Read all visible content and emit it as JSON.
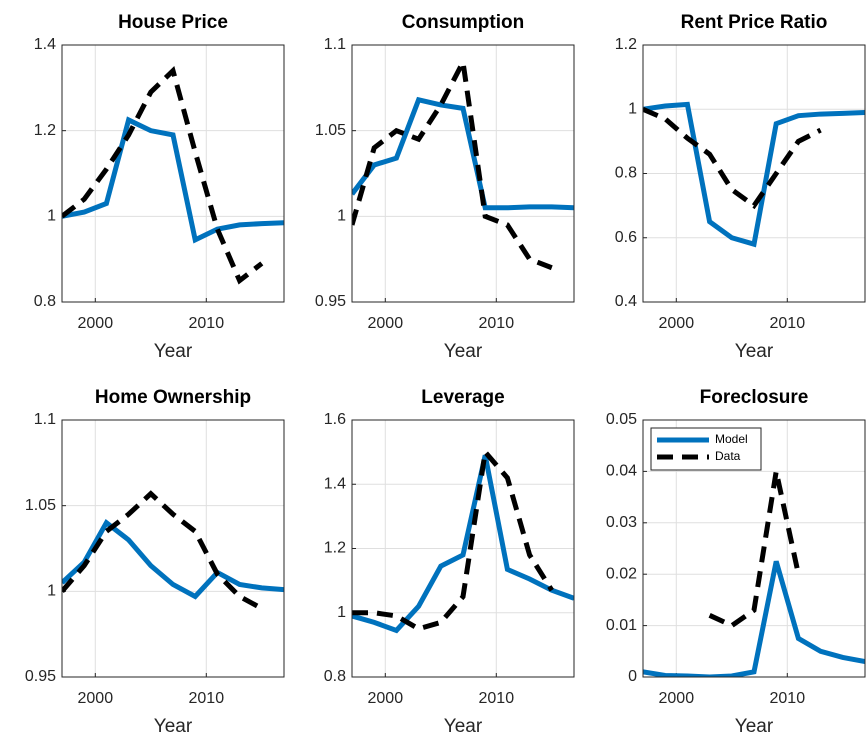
{
  "chart_data": [
    {
      "type": "line",
      "title": "House Price",
      "x_label": "Year",
      "x": [
        1997,
        1999,
        2001,
        2003,
        2005,
        2007,
        2009,
        2011,
        2013,
        2015,
        2017
      ],
      "series": [
        {
          "color": "#0072bd",
          "style": "solid",
          "values": [
            1.0,
            1.01,
            1.03,
            1.225,
            1.2,
            1.19,
            0.945,
            0.97,
            0.98,
            0.983,
            0.985
          ]
        },
        {
          "color": "#000000",
          "style": "dashed",
          "values": [
            1.0,
            1.04,
            1.11,
            1.19,
            1.29,
            1.34,
            1.15,
            0.97,
            0.85,
            0.89,
            null
          ]
        }
      ],
      "xlim": [
        1997,
        2017
      ],
      "xticks": [
        2000,
        2010
      ],
      "ylim": [
        0.8,
        1.4
      ],
      "yticks": [
        0.8,
        1,
        1.2,
        1.4
      ],
      "grid": true
    },
    {
      "type": "line",
      "title": "Consumption",
      "x_label": "Year",
      "x": [
        1997,
        1999,
        2001,
        2003,
        2005,
        2007,
        2009,
        2011,
        2013,
        2015,
        2017
      ],
      "series": [
        {
          "color": "#0072bd",
          "style": "solid",
          "values": [
            1.013,
            1.03,
            1.034,
            1.068,
            1.065,
            1.063,
            1.005,
            1.005,
            1.0055,
            1.0055,
            1.005
          ]
        },
        {
          "color": "#000000",
          "style": "dashed",
          "values": [
            0.995,
            1.04,
            1.05,
            1.045,
            1.065,
            1.09,
            1.0,
            0.995,
            0.975,
            0.97,
            null
          ]
        }
      ],
      "xlim": [
        1997,
        2017
      ],
      "xticks": [
        2000,
        2010
      ],
      "ylim": [
        0.95,
        1.1
      ],
      "yticks": [
        0.95,
        1,
        1.05,
        1.1
      ],
      "grid": true
    },
    {
      "type": "line",
      "title": "Rent Price Ratio",
      "x_label": "Year",
      "x": [
        1997,
        1999,
        2001,
        2003,
        2005,
        2007,
        2009,
        2011,
        2013,
        2015,
        2017
      ],
      "series": [
        {
          "color": "#0072bd",
          "style": "solid",
          "values": [
            1.0,
            1.01,
            1.015,
            0.65,
            0.6,
            0.58,
            0.955,
            0.98,
            0.985,
            0.987,
            0.99
          ]
        },
        {
          "color": "#000000",
          "style": "dashed",
          "values": [
            1.0,
            0.97,
            0.91,
            0.86,
            0.75,
            0.7,
            0.8,
            0.9,
            0.935,
            null,
            null
          ]
        }
      ],
      "xlim": [
        1997,
        2017
      ],
      "xticks": [
        2000,
        2010
      ],
      "ylim": [
        0.4,
        1.2
      ],
      "yticks": [
        0.4,
        0.6,
        0.8,
        1,
        1.2
      ],
      "grid": true
    },
    {
      "type": "line",
      "title": "Home Ownership",
      "x_label": "Year",
      "x": [
        1997,
        1999,
        2001,
        2003,
        2005,
        2007,
        2009,
        2011,
        2013,
        2015,
        2017
      ],
      "series": [
        {
          "color": "#0072bd",
          "style": "solid",
          "values": [
            1.005,
            1.017,
            1.04,
            1.03,
            1.015,
            1.004,
            0.997,
            1.011,
            1.004,
            1.002,
            1.001
          ]
        },
        {
          "color": "#000000",
          "style": "dashed",
          "values": [
            1.0,
            1.015,
            1.035,
            1.045,
            1.057,
            1.045,
            1.035,
            1.01,
            0.997,
            0.99,
            null
          ]
        }
      ],
      "xlim": [
        1997,
        2017
      ],
      "xticks": [
        2000,
        2010
      ],
      "ylim": [
        0.95,
        1.1
      ],
      "yticks": [
        0.95,
        1,
        1.05,
        1.1
      ],
      "grid": true
    },
    {
      "type": "line",
      "title": "Leverage",
      "x_label": "Year",
      "x": [
        1997,
        1999,
        2001,
        2003,
        2005,
        2007,
        2009,
        2011,
        2013,
        2015,
        2017
      ],
      "series": [
        {
          "color": "#0072bd",
          "style": "solid",
          "values": [
            0.99,
            0.97,
            0.945,
            1.02,
            1.145,
            1.18,
            1.49,
            1.135,
            1.105,
            1.07,
            1.045
          ]
        },
        {
          "color": "#000000",
          "style": "dashed",
          "values": [
            1.0,
            1.0,
            0.99,
            0.95,
            0.97,
            1.05,
            1.5,
            1.42,
            1.18,
            1.07,
            null
          ]
        }
      ],
      "xlim": [
        1997,
        2017
      ],
      "xticks": [
        2000,
        2010
      ],
      "ylim": [
        0.8,
        1.6
      ],
      "yticks": [
        0.8,
        1,
        1.2,
        1.4,
        1.6
      ],
      "grid": true
    },
    {
      "type": "line",
      "title": "Foreclosure",
      "x_label": "Year",
      "x": [
        1997,
        1999,
        2001,
        2003,
        2005,
        2007,
        2009,
        2011,
        2013,
        2015,
        2017
      ],
      "series": [
        {
          "name": "Model",
          "color": "#0072bd",
          "style": "solid",
          "values": [
            0.001,
            0.0003,
            0.0002,
            0.0,
            0.0002,
            0.001,
            0.0225,
            0.0075,
            0.005,
            0.0038,
            0.003
          ]
        },
        {
          "name": "Data",
          "color": "#000000",
          "style": "dashed",
          "values": [
            null,
            null,
            null,
            0.012,
            0.01,
            0.013,
            0.04,
            0.02,
            null,
            null,
            null
          ]
        }
      ],
      "xlim": [
        1997,
        2017
      ],
      "xticks": [
        2000,
        2010
      ],
      "ylim": [
        0,
        0.05
      ],
      "yticks": [
        0,
        0.01,
        0.02,
        0.03,
        0.04,
        0.05
      ],
      "grid": true,
      "legend": "upper left"
    }
  ]
}
